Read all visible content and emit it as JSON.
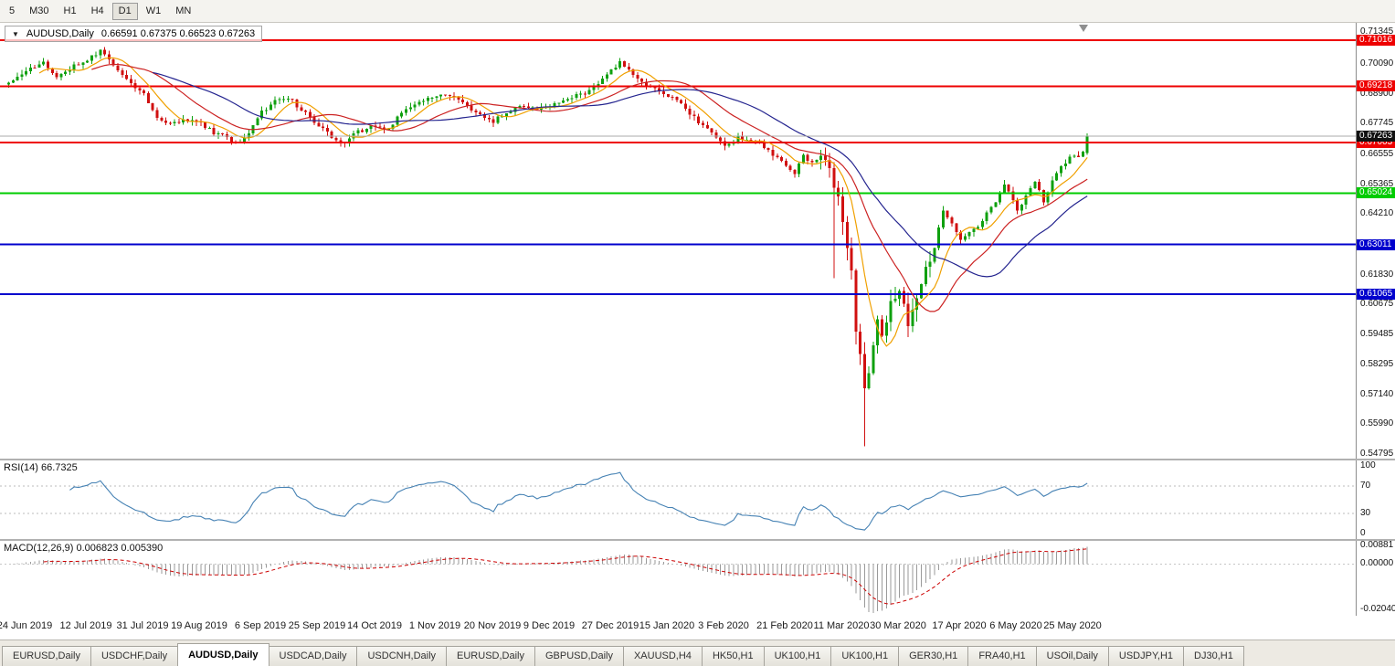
{
  "toolbar": {
    "timeframes": [
      {
        "label": "5",
        "selected": false
      },
      {
        "label": "M30",
        "selected": false
      },
      {
        "label": "H1",
        "selected": false
      },
      {
        "label": "H4",
        "selected": false
      },
      {
        "label": "D1",
        "selected": true
      },
      {
        "label": "W1",
        "selected": false
      },
      {
        "label": "MN",
        "selected": false
      }
    ]
  },
  "chart_header": {
    "dropdown_icon": "▼",
    "symbol": "AUDUSD,Daily",
    "ohlc": "0.66591 0.67375 0.66523 0.67263"
  },
  "chart_data": {
    "type": "candlestick",
    "symbol": "AUDUSD",
    "timeframe": "Daily",
    "last_bar": {
      "open": 0.66591,
      "high": 0.67375,
      "low": 0.66523,
      "close": 0.67263
    },
    "bid": {
      "price": 0.67263,
      "label": "0.67263",
      "color": "#111111"
    },
    "price_range": [
      0.5462,
      0.717
    ],
    "bars": 248,
    "close_path": [
      [
        0,
        0.693
      ],
      [
        4,
        0.698
      ],
      [
        8,
        0.701
      ],
      [
        11,
        0.696
      ],
      [
        15,
        0.7
      ],
      [
        18,
        0.7025
      ],
      [
        21,
        0.706
      ],
      [
        24,
        0.7
      ],
      [
        27,
        0.695
      ],
      [
        31,
        0.689
      ],
      [
        34,
        0.68
      ],
      [
        37,
        0.6768
      ],
      [
        40,
        0.679
      ],
      [
        44,
        0.6775
      ],
      [
        47,
        0.674
      ],
      [
        50,
        0.6718
      ],
      [
        53,
        0.67
      ],
      [
        55,
        0.6738
      ],
      [
        58,
        0.682
      ],
      [
        61,
        0.686
      ],
      [
        64,
        0.6878
      ],
      [
        67,
        0.683
      ],
      [
        71,
        0.6768
      ],
      [
        74,
        0.672
      ],
      [
        77,
        0.67
      ],
      [
        80,
        0.6745
      ],
      [
        84,
        0.6765
      ],
      [
        87,
        0.6748
      ],
      [
        90,
        0.682
      ],
      [
        94,
        0.6858
      ],
      [
        98,
        0.689
      ],
      [
        102,
        0.688
      ],
      [
        106,
        0.683
      ],
      [
        109,
        0.6795
      ],
      [
        111,
        0.6785
      ],
      [
        114,
        0.6818
      ],
      [
        117,
        0.6845
      ],
      [
        121,
        0.6828
      ],
      [
        124,
        0.684
      ],
      [
        128,
        0.6878
      ],
      [
        132,
        0.6898
      ],
      [
        136,
        0.6948
      ],
      [
        138,
        0.6985
      ],
      [
        140,
        0.7018
      ],
      [
        143,
        0.696
      ],
      [
        146,
        0.6925
      ],
      [
        149,
        0.69
      ],
      [
        151,
        0.6888
      ],
      [
        154,
        0.685
      ],
      [
        157,
        0.6798
      ],
      [
        160,
        0.6758
      ],
      [
        164,
        0.6695
      ],
      [
        167,
        0.672
      ],
      [
        170,
        0.6708
      ],
      [
        173,
        0.6685
      ],
      [
        176,
        0.664
      ],
      [
        178,
        0.6605
      ],
      [
        180,
        0.6585
      ],
      [
        182,
        0.665
      ],
      [
        184,
        0.6618
      ],
      [
        186,
        0.664
      ],
      [
        188,
        0.6588
      ],
      [
        190,
        0.6478
      ],
      [
        191,
        0.6398
      ],
      [
        192,
        0.6298
      ],
      [
        193,
        0.6218
      ],
      [
        194,
        0.5978
      ],
      [
        195,
        0.5878
      ],
      [
        196,
        0.576
      ],
      [
        197,
        0.5812
      ],
      [
        198,
        0.5908
      ],
      [
        199,
        0.6008
      ],
      [
        200,
        0.5958
      ],
      [
        202,
        0.6068
      ],
      [
        204,
        0.6128
      ],
      [
        205,
        0.6088
      ],
      [
        206,
        0.5988
      ],
      [
        208,
        0.6088
      ],
      [
        210,
        0.6198
      ],
      [
        212,
        0.6298
      ],
      [
        214,
        0.6438
      ],
      [
        216,
        0.6378
      ],
      [
        218,
        0.632
      ],
      [
        220,
        0.6345
      ],
      [
        222,
        0.6375
      ],
      [
        224,
        0.642
      ],
      [
        226,
        0.6465
      ],
      [
        228,
        0.6535
      ],
      [
        230,
        0.648
      ],
      [
        231,
        0.644
      ],
      [
        233,
        0.649
      ],
      [
        235,
        0.6545
      ],
      [
        237,
        0.647
      ],
      [
        239,
        0.6545
      ],
      [
        241,
        0.661
      ],
      [
        244,
        0.6655
      ],
      [
        245,
        0.664
      ],
      [
        246,
        0.6659
      ],
      [
        247,
        0.67263
      ]
    ],
    "spikes": [
      {
        "bar": 189,
        "low": 0.617
      },
      {
        "bar": 196,
        "low": 0.551
      }
    ],
    "levels": [
      {
        "price": 0.71016,
        "label": "0.71016",
        "color": "#EE0000"
      },
      {
        "price": 0.69218,
        "label": "0.69218",
        "color": "#EE0000"
      },
      {
        "price": 0.67003,
        "label": "0.67003",
        "color": "#EE0000"
      },
      {
        "price": 0.65024,
        "label": "0.65024",
        "color": "#00CC00"
      },
      {
        "price": 0.63011,
        "label": "0.63011",
        "color": "#0000CD"
      },
      {
        "price": 0.61065,
        "label": "0.61065",
        "color": "#0000CD"
      }
    ],
    "y_ticks": [
      0.71345,
      0.7009,
      0.689,
      0.67745,
      0.66555,
      0.65365,
      0.6421,
      0.6183,
      0.60675,
      0.59485,
      0.58295,
      0.5714,
      0.5599,
      0.54795
    ],
    "moving_averages": [
      {
        "period": 8,
        "color": "#F0A000"
      },
      {
        "period": 20,
        "color": "#CC2222"
      },
      {
        "period": 34,
        "color": "#24248F"
      }
    ],
    "candle_colors": {
      "up": "#0FA00F",
      "down": "#D01010"
    },
    "x_labels": [
      {
        "text": "24 Jun 2019",
        "bar": 4
      },
      {
        "text": "12 Jul 2019",
        "bar": 18
      },
      {
        "text": "31 Jul 2019",
        "bar": 31
      },
      {
        "text": "19 Aug 2019",
        "bar": 44
      },
      {
        "text": "6 Sep 2019",
        "bar": 58
      },
      {
        "text": "25 Sep 2019",
        "bar": 71
      },
      {
        "text": "14 Oct 2019",
        "bar": 84
      },
      {
        "text": "1 Nov 2019",
        "bar": 98
      },
      {
        "text": "20 Nov 2019",
        "bar": 111
      },
      {
        "text": "9 Dec 2019",
        "bar": 124
      },
      {
        "text": "27 Dec 2019",
        "bar": 138
      },
      {
        "text": "15 Jan 2020",
        "bar": 151
      },
      {
        "text": "3 Feb 2020",
        "bar": 164
      },
      {
        "text": "21 Feb 2020",
        "bar": 178
      },
      {
        "text": "11 Mar 2020",
        "bar": 191
      },
      {
        "text": "30 Mar 2020",
        "bar": 204
      },
      {
        "text": "17 Apr 2020",
        "bar": 218
      },
      {
        "text": "6 May 2020",
        "bar": 231
      },
      {
        "text": "25 May 2020",
        "bar": 244
      }
    ]
  },
  "rsi": {
    "label": "RSI(14) 66.7325",
    "period": 14,
    "value": 66.7325,
    "color": "#4682B4",
    "levels": [
      70,
      30
    ],
    "axis": [
      {
        "text": "100",
        "v": 100
      },
      {
        "text": "70",
        "v": 70
      },
      {
        "text": "30",
        "v": 30
      },
      {
        "text": "0",
        "v": 0
      }
    ]
  },
  "macd": {
    "label": "MACD(12,26,9) 0.006823 0.005390",
    "macd_value": 0.006823,
    "signal_value": 0.00539,
    "histogram_color": "#9A9A9A",
    "signal_color": "#CC0000",
    "range": [
      -0.0235,
      0.0105
    ],
    "axis": [
      {
        "text": "0.00881",
        "v": 0.00881
      },
      {
        "text": "0.00000",
        "v": 0
      },
      {
        "text": "-0.02040",
        "v": -0.0204
      }
    ]
  },
  "tabs": {
    "items": [
      {
        "label": "EURUSD,Daily",
        "selected": false
      },
      {
        "label": "USDCHF,Daily",
        "selected": false
      },
      {
        "label": "AUDUSD,Daily",
        "selected": true
      },
      {
        "label": "USDCAD,Daily",
        "selected": false
      },
      {
        "label": "USDCNH,Daily",
        "selected": false
      },
      {
        "label": "EURUSD,Daily",
        "selected": false
      },
      {
        "label": "GBPUSD,Daily",
        "selected": false
      },
      {
        "label": "XAUUSD,H4",
        "selected": false
      },
      {
        "label": "HK50,H1",
        "selected": false
      },
      {
        "label": "UK100,H1",
        "selected": false
      },
      {
        "label": "UK100,H1",
        "selected": false
      },
      {
        "label": "GER30,H1",
        "selected": false
      },
      {
        "label": "FRA40,H1",
        "selected": false
      },
      {
        "label": "USOil,Daily",
        "selected": false
      },
      {
        "label": "USDJPY,H1",
        "selected": false
      },
      {
        "label": "DJ30,H1",
        "selected": false
      }
    ]
  }
}
